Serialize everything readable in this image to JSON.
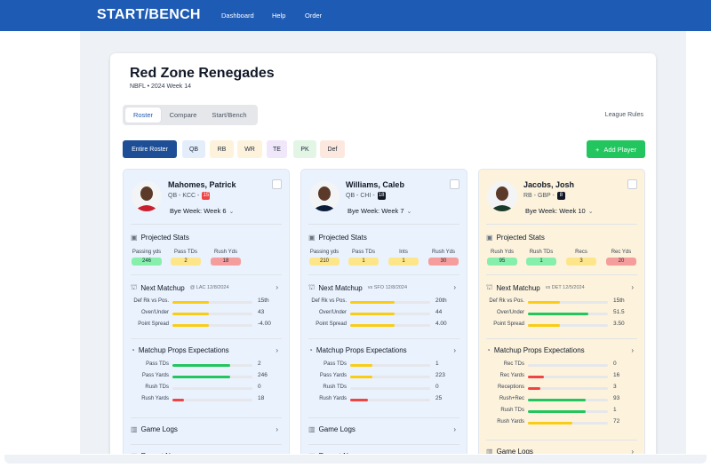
{
  "brand": {
    "logo": "START/BENCH"
  },
  "nav": [
    {
      "label": "Dashboard"
    },
    {
      "label": "Help"
    },
    {
      "label": "Order"
    }
  ],
  "team": {
    "name": "Red Zone Renegades",
    "sub": "NBFL • 2024 Week 14"
  },
  "tabs": [
    {
      "label": "Roster",
      "active": true
    },
    {
      "label": "Compare"
    },
    {
      "label": "Start/Bench"
    }
  ],
  "league_rules": "League Rules",
  "filters": [
    {
      "label": "Entire Roster",
      "bg": "#1d4e96",
      "fg": "#ffffff"
    },
    {
      "label": "QB",
      "bg": "#e4eefb",
      "fg": "#1f2937"
    },
    {
      "label": "RB",
      "bg": "#fdf3dd",
      "fg": "#1f2937"
    },
    {
      "label": "WR",
      "bg": "#fdf3dd",
      "fg": "#1f2937"
    },
    {
      "label": "TE",
      "bg": "#f0e7fb",
      "fg": "#1f2937"
    },
    {
      "label": "PK",
      "bg": "#e3f6e6",
      "fg": "#1f2937"
    },
    {
      "label": "Def",
      "bg": "#fde8e0",
      "fg": "#1f2937"
    }
  ],
  "add_player": {
    "icon": "plus-icon",
    "label": "Add Player"
  },
  "section_titles": {
    "projected": "Projected Stats",
    "matchup": "Next Matchup",
    "props": "Matchup Props Expectations",
    "logs": "Game Logs",
    "news": "Recent News"
  },
  "players": [
    {
      "name": "Mahomes, Patrick",
      "meta": "QB - KCC -",
      "rank": "15",
      "rank_color": "#ef4444",
      "bye": "Bye Week: Week 6",
      "card_bg": "#eaf2fd",
      "jersey": "#c8202f",
      "projected": [
        {
          "label": "Passing yds",
          "value": "246",
          "color": "#86efac"
        },
        {
          "label": "Pass TDs",
          "value": "2",
          "color": "#fde68a"
        },
        {
          "label": "Rush Yds",
          "value": "18",
          "color": "#f59d9d"
        }
      ],
      "matchup_sub": "@ LAC 12/8/2024",
      "matchup": [
        {
          "label": "Def Rk vs Pos.",
          "value": "15th",
          "pct": 0.45,
          "color": "#facc15"
        },
        {
          "label": "Over/Under",
          "value": "43",
          "pct": 0.45,
          "color": "#facc15"
        },
        {
          "label": "Point Spread",
          "value": "-4.00",
          "pct": 0.45,
          "color": "#facc15"
        }
      ],
      "props": [
        {
          "label": "Pass TDs",
          "value": "2",
          "pct": 0.72,
          "color": "#22c55e"
        },
        {
          "label": "Pass Yards",
          "value": "246",
          "pct": 0.72,
          "color": "#22c55e"
        },
        {
          "label": "Rush TDs",
          "value": "0",
          "pct": 0,
          "color": "#22c55e"
        },
        {
          "label": "Rush Yards",
          "value": "18",
          "pct": 0.14,
          "color": "#ef4444"
        }
      ],
      "logs_top": 288,
      "news_top": 318
    },
    {
      "name": "Williams, Caleb",
      "meta": "QB - CHI -",
      "rank": "18",
      "rank_color": "#111827",
      "bye": "Bye Week: Week 7",
      "card_bg": "#eaf2fd",
      "jersey": "#0b1c3a",
      "projected": [
        {
          "label": "Passing yds",
          "value": "210",
          "color": "#fde68a"
        },
        {
          "label": "Pass TDs",
          "value": "1",
          "color": "#fde68a"
        },
        {
          "label": "Ints",
          "value": "1",
          "color": "#fde68a"
        },
        {
          "label": "Rush Yds",
          "value": "30",
          "color": "#f59d9d"
        }
      ],
      "matchup_sub": "vs SFO 12/8/2024",
      "matchup": [
        {
          "label": "Def Rk vs Pos.",
          "value": "20th",
          "pct": 0.55,
          "color": "#facc15"
        },
        {
          "label": "Over/Under",
          "value": "44",
          "pct": 0.55,
          "color": "#facc15"
        },
        {
          "label": "Point Spread",
          "value": "4.00",
          "pct": 0.55,
          "color": "#facc15"
        }
      ],
      "props": [
        {
          "label": "Pass TDs",
          "value": "1",
          "pct": 0.28,
          "color": "#facc15"
        },
        {
          "label": "Pass Yards",
          "value": "223",
          "pct": 0.28,
          "color": "#facc15"
        },
        {
          "label": "Rush TDs",
          "value": "0",
          "pct": 0,
          "color": "#facc15"
        },
        {
          "label": "Rush Yards",
          "value": "25",
          "pct": 0.22,
          "color": "#ef4444"
        }
      ],
      "logs_top": 288,
      "news_top": 318
    },
    {
      "name": "Jacobs, Josh",
      "meta": "RB - GBP -",
      "rank": "8",
      "rank_color": "#111827",
      "bye": "Bye Week: Week 10",
      "card_bg": "#fdf3dd",
      "jersey": "#1b3b2a",
      "projected": [
        {
          "label": "Rush Yds",
          "value": "95",
          "color": "#86efac"
        },
        {
          "label": "Rush TDs",
          "value": "1",
          "color": "#86efac"
        },
        {
          "label": "Recs",
          "value": "3",
          "color": "#fde68a"
        },
        {
          "label": "Rec Yds",
          "value": "20",
          "color": "#f59d9d"
        }
      ],
      "matchup_sub": "vs DET 12/5/2024",
      "matchup": [
        {
          "label": "Def Rk vs Pos.",
          "value": "15th",
          "pct": 0.4,
          "color": "#facc15"
        },
        {
          "label": "Over/Under",
          "value": "51.5",
          "pct": 0.75,
          "color": "#22c55e"
        },
        {
          "label": "Point Spread",
          "value": "3.50",
          "pct": 0.4,
          "color": "#facc15"
        }
      ],
      "props": [
        {
          "label": "Rec TDs",
          "value": "0",
          "pct": 0,
          "color": "#22c55e"
        },
        {
          "label": "Rec Yards",
          "value": "16",
          "pct": 0.2,
          "color": "#ef4444"
        },
        {
          "label": "Receptions",
          "value": "3",
          "pct": 0.15,
          "color": "#ef4444"
        },
        {
          "label": "Rush+Rec",
          "value": "93",
          "pct": 0.72,
          "color": "#22c55e"
        },
        {
          "label": "Rush TDs",
          "value": "1",
          "pct": 0.72,
          "color": "#22c55e"
        },
        {
          "label": "Rush Yards",
          "value": "72",
          "pct": 0.55,
          "color": "#facc15"
        }
      ],
      "logs_top": 313,
      "news_top": 343
    }
  ]
}
